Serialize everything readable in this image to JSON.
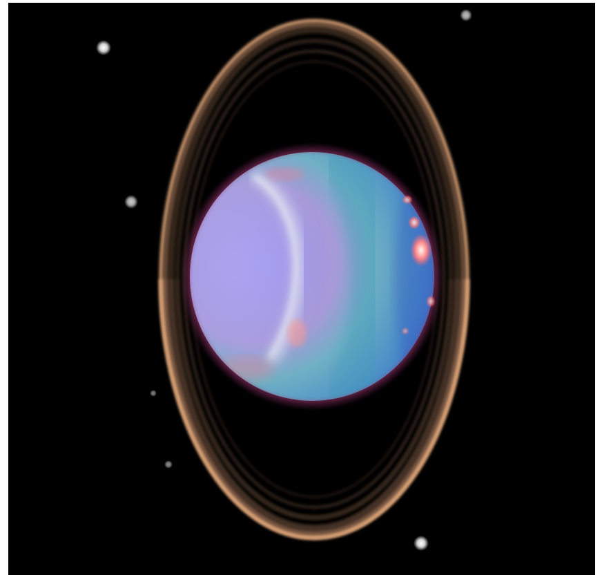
{
  "image": {
    "subject": "uranus-planet-with-rings-and-moons",
    "colors": {
      "background": "#000000",
      "page": "#ffffff",
      "ring_outer": "#d9a176",
      "ring_inner": "#6a4c3a",
      "planet_left": "#8f8ff3",
      "planet_center": "#5fa3c9",
      "planet_right": "#3f6fd0",
      "polar_collar": "#cfd8e8",
      "hotspot": "#ffefe8",
      "limb": "#8a2a5a",
      "moon": "#d8d8d8"
    }
  }
}
